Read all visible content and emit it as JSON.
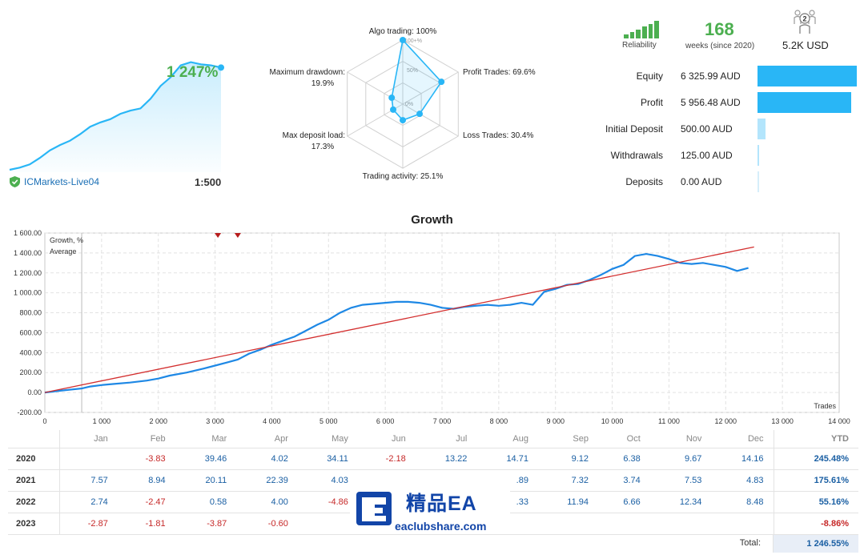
{
  "summary": {
    "gain": "1 247%",
    "account": "ICMarkets-Live04",
    "leverage": "1:500",
    "reliability_label": "Reliability",
    "weeks": "168",
    "weeks_label": "weeks (since 2020)",
    "subscribers": "2",
    "subscription_price": "5.2K USD",
    "accent": "#29b6f6",
    "green": "#4caf50"
  },
  "mini_growth": {
    "values": [
      0,
      2,
      5,
      11,
      18,
      23,
      27,
      33,
      40,
      44,
      47,
      52,
      55,
      57,
      66,
      78,
      86,
      97,
      100,
      98,
      97,
      95
    ]
  },
  "radar": {
    "ticks": [
      "100+%",
      "50%",
      "0%"
    ],
    "axes": [
      {
        "label": "Algo trading: 100%",
        "value": 100
      },
      {
        "label": "Profit Trades: 69.6%",
        "value": 69.6
      },
      {
        "label": "Loss Trades: 30.4%",
        "value": 30.4
      },
      {
        "label": "Trading activity: 25.1%",
        "value": 25.1
      },
      {
        "label": "Max deposit load:",
        "label2": "17.3%",
        "value": 17.3
      },
      {
        "label": "Maximum drawdown:",
        "label2": "19.9%",
        "value": 19.9
      }
    ]
  },
  "stats": [
    {
      "label": "Equity",
      "value": "6 325.99 AUD",
      "fraction": 1.0,
      "color": "#29b6f6"
    },
    {
      "label": "Profit",
      "value": "5 956.48 AUD",
      "fraction": 0.94,
      "color": "#29b6f6"
    },
    {
      "label": "Initial Deposit",
      "value": "500.00 AUD",
      "fraction": 0.08,
      "color": "#b3e5fc"
    },
    {
      "label": "Withdrawals",
      "value": "125.00 AUD",
      "fraction": 0.02,
      "color": "#b3e5fc"
    },
    {
      "label": "Deposits",
      "value": "0.00 AUD",
      "fraction": 0.005,
      "color": "#d6eefa"
    }
  ],
  "chart_data": {
    "type": "line",
    "title": "Growth",
    "xlabel": "Trades",
    "ylabel": "",
    "xlim": [
      0,
      14000
    ],
    "ylim": [
      -200,
      1600
    ],
    "x_ticks": [
      "0",
      "1 000",
      "2 000",
      "3 000",
      "4 000",
      "5 000",
      "6 000",
      "7 000",
      "8 000",
      "9 000",
      "10 000",
      "11 000",
      "12 000",
      "13 000",
      "14 000"
    ],
    "y_ticks": [
      "-200.00",
      "0.00",
      "200.00",
      "400.00",
      "600.00",
      "800.00",
      "1 000.00",
      "1 200.00",
      "1 400.00",
      "1 600.00"
    ],
    "legend_position": "top-left",
    "series": [
      {
        "name": "Growth, %",
        "color": "#1e88e5",
        "x": [
          0,
          300,
          650,
          800,
          1000,
          1200,
          1500,
          1800,
          2000,
          2200,
          2500,
          2800,
          3000,
          3200,
          3400,
          3600,
          3800,
          4000,
          4200,
          4400,
          4600,
          4800,
          5000,
          5200,
          5400,
          5600,
          5800,
          6000,
          6200,
          6400,
          6600,
          6800,
          7000,
          7200,
          7400,
          7600,
          7800,
          8000,
          8200,
          8400,
          8600,
          8800,
          9000,
          9200,
          9400,
          9600,
          9800,
          10000,
          10200,
          10400,
          10600,
          10800,
          11000,
          11200,
          11400,
          11600,
          11800,
          12000,
          12200,
          12400
        ],
        "y": [
          0,
          20,
          40,
          60,
          75,
          85,
          100,
          120,
          140,
          170,
          200,
          240,
          270,
          300,
          330,
          390,
          430,
          480,
          520,
          560,
          620,
          680,
          730,
          800,
          850,
          880,
          890,
          900,
          910,
          910,
          900,
          880,
          850,
          840,
          860,
          870,
          880,
          870,
          880,
          900,
          880,
          1010,
          1040,
          1080,
          1090,
          1130,
          1180,
          1240,
          1280,
          1370,
          1390,
          1370,
          1340,
          1300,
          1290,
          1300,
          1280,
          1260,
          1220,
          1250
        ]
      },
      {
        "name": "Average",
        "color": "#d32f2f",
        "x": [
          0,
          12500
        ],
        "y": [
          0,
          1460
        ]
      }
    ],
    "markers": [
      3050,
      3400
    ],
    "vline_x": 650
  },
  "table": {
    "headers": [
      "Jan",
      "Feb",
      "Mar",
      "Apr",
      "May",
      "Jun",
      "Jul",
      "Aug",
      "Sep",
      "Oct",
      "Nov",
      "Dec",
      "YTD"
    ],
    "rows": [
      {
        "year": "2020",
        "cells": [
          "",
          "-3.83",
          "39.46",
          "4.02",
          "34.11",
          "-2.18",
          "13.22",
          "14.71",
          "9.12",
          "6.38",
          "9.67",
          "14.16",
          "245.48%"
        ]
      },
      {
        "year": "2021",
        "cells": [
          "7.57",
          "8.94",
          "20.11",
          "22.39",
          "4.03",
          "",
          "",
          ".89",
          "7.32",
          "3.74",
          "7.53",
          "4.83",
          "175.61%"
        ]
      },
      {
        "year": "2022",
        "cells": [
          "2.74",
          "-2.47",
          "0.58",
          "4.00",
          "-4.86",
          "",
          "",
          ".33",
          "11.94",
          "6.66",
          "12.34",
          "8.48",
          "55.16%"
        ]
      },
      {
        "year": "2023",
        "cells": [
          "-2.87",
          "-1.81",
          "-3.87",
          "-0.60",
          "",
          "",
          "",
          "",
          "",
          "",
          "",
          "",
          "-8.86%"
        ]
      }
    ],
    "total_label": "Total:",
    "total_value": "1 246.55%"
  },
  "watermark": {
    "title": "精品EA",
    "subtitle": "eaclubshare.com"
  }
}
